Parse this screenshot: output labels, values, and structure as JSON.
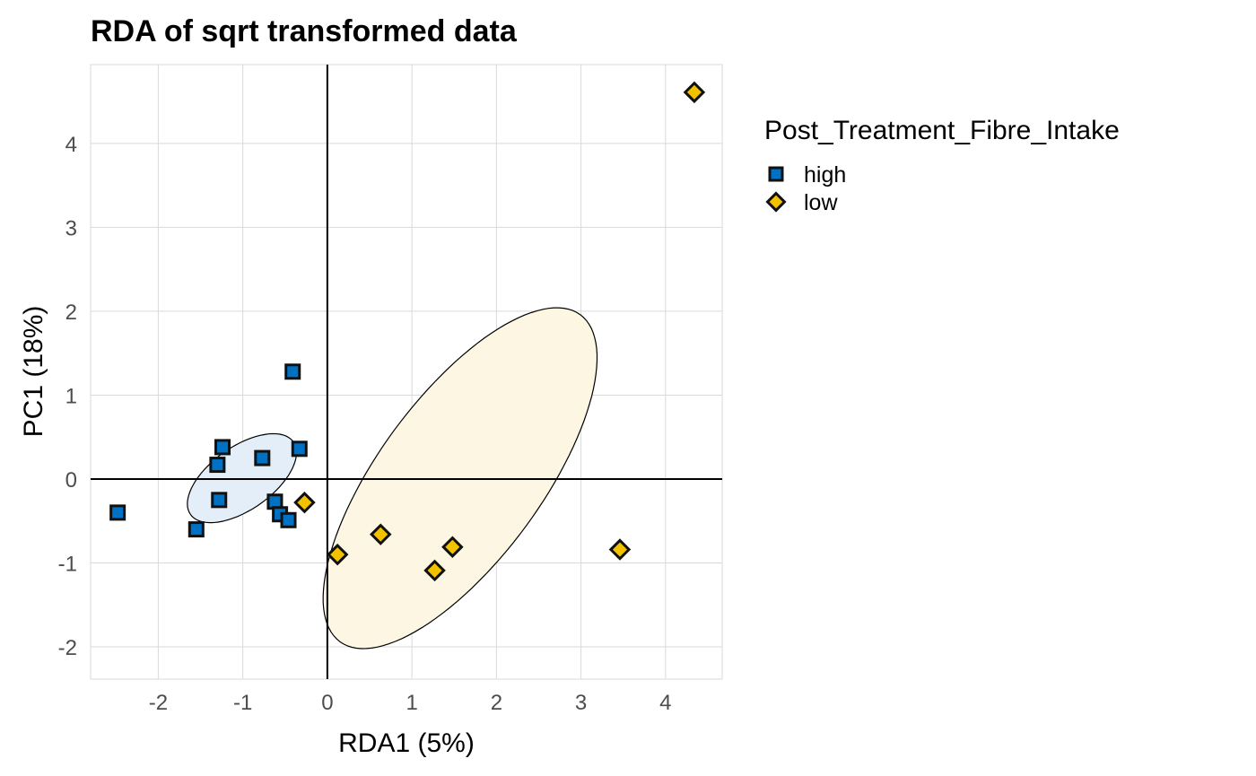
{
  "chart_data": {
    "type": "scatter",
    "title": "RDA of sqrt transformed data",
    "xlabel": "RDA1 (5%)",
    "ylabel": "PC1 (18%)",
    "xlim": [
      -2.8,
      4.67
    ],
    "ylim": [
      -2.385,
      4.94
    ],
    "xticks": [
      -2,
      -1,
      0,
      1,
      2,
      3,
      4
    ],
    "yticks": [
      -2,
      -1,
      0,
      1,
      2,
      3,
      4
    ],
    "grid": true,
    "reference_lines": {
      "x": 0,
      "y": 0
    },
    "legend": {
      "title": "Post_Treatment_Fibre_Intake",
      "placement": "right"
    },
    "series": [
      {
        "name": "high",
        "marker": "square",
        "color": "#0072C6",
        "ellipse_fill": "#E3EEF8",
        "x": [
          -2.48,
          -1.55,
          -1.3,
          -1.24,
          -1.28,
          -0.77,
          -0.41,
          -0.33,
          -0.62,
          -0.56,
          -0.46
        ],
        "y": [
          -0.4,
          -0.6,
          0.17,
          0.38,
          -0.25,
          0.25,
          1.28,
          0.36,
          -0.27,
          -0.42,
          -0.49
        ],
        "ellipse": {
          "center": [
            -1.01,
            0.01
          ],
          "axis1": [
            0.61,
            0.43
          ],
          "axis2": [
            0.21,
            -0.31
          ]
        }
      },
      {
        "name": "low",
        "marker": "diamond",
        "color": "#F2C200",
        "ellipse_fill": "#FCF6E3",
        "x": [
          4.34,
          -0.27,
          0.12,
          0.63,
          1.27,
          1.48,
          3.46
        ],
        "y": [
          4.61,
          -0.28,
          -0.9,
          -0.66,
          -1.09,
          -0.81,
          -0.84
        ],
        "ellipse": {
          "center": [
            1.57,
            0.01
          ],
          "axis1": [
            1.42,
            1.95
          ],
          "axis2": [
            0.78,
            -0.57
          ]
        }
      }
    ]
  }
}
